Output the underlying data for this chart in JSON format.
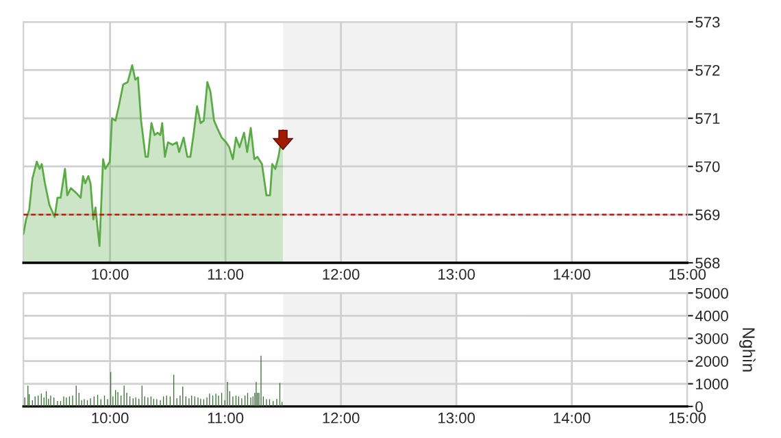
{
  "chart_data": [
    {
      "type": "area",
      "xlim": [
        9.25,
        15
      ],
      "xticks": [
        {
          "value": 10,
          "label": "10:00"
        },
        {
          "value": 11,
          "label": "11:00"
        },
        {
          "value": 12,
          "label": "12:00"
        },
        {
          "value": 13,
          "label": "13:00"
        },
        {
          "value": 14,
          "label": "14:00"
        },
        {
          "value": 15,
          "label": "15:00"
        }
      ],
      "ylim": [
        568,
        573
      ],
      "yticks": [
        568,
        569,
        570,
        571,
        572,
        573
      ],
      "grid": true,
      "ref_lines": [
        {
          "axis": "y",
          "value": 569,
          "color": "#cc0000",
          "line_style": "dashed"
        }
      ],
      "bands": [
        {
          "axis": "x",
          "from": 11.5,
          "to": 13,
          "color": "#f2f2f2"
        }
      ],
      "series": [
        {
          "color": "#5aaa46",
          "x": [
            9.25,
            9.273,
            9.3,
            9.328,
            9.366,
            9.39,
            9.409,
            9.436,
            9.475,
            9.521,
            9.545,
            9.572,
            9.61,
            9.63,
            9.661,
            9.707,
            9.746,
            9.766,
            9.785,
            9.812,
            9.831,
            9.855,
            9.874,
            9.893,
            9.909,
            9.94,
            9.959,
            9.998,
            10.017,
            10.048,
            10.076,
            10.114,
            10.153,
            10.192,
            10.219,
            10.242,
            10.269,
            10.308,
            10.328,
            10.359,
            10.386,
            10.413,
            10.436,
            10.452,
            10.475,
            10.502,
            10.541,
            10.579,
            10.599,
            10.638,
            10.669,
            10.696,
            10.723,
            10.754,
            10.785,
            10.812,
            10.843,
            10.87,
            10.901,
            10.928,
            10.967,
            11.006,
            11.033,
            11.064,
            11.091,
            11.122,
            11.161,
            11.188,
            11.219,
            11.25,
            11.277,
            11.316,
            11.355,
            11.386,
            11.405,
            11.432,
            11.459,
            11.498
          ],
          "values": [
            568.6,
            568.9,
            569.1,
            569.75,
            570.1,
            569.95,
            570.05,
            569.65,
            569.2,
            568.95,
            569.35,
            569.35,
            569.95,
            569.4,
            569.55,
            569.45,
            569.35,
            569.8,
            569.65,
            569.8,
            569.65,
            568.9,
            569.15,
            568.7,
            568.35,
            570.15,
            569.95,
            570.1,
            571.0,
            570.95,
            571.25,
            571.7,
            571.75,
            572.1,
            571.8,
            571.85,
            570.95,
            570.2,
            570.2,
            570.9,
            570.65,
            570.7,
            570.65,
            570.9,
            570.2,
            570.5,
            570.45,
            570.5,
            570.3,
            570.6,
            570.2,
            570.2,
            570.65,
            571.25,
            570.9,
            570.95,
            571.75,
            571.55,
            570.95,
            570.8,
            570.6,
            570.5,
            570.4,
            570.15,
            570.6,
            570.4,
            570.7,
            570.3,
            570.8,
            570.15,
            570.2,
            570.05,
            569.4,
            569.4,
            570.05,
            569.95,
            570.2,
            570.75
          ]
        }
      ]
    },
    {
      "type": "bar",
      "xlim": [
        9.25,
        15
      ],
      "xticks": [
        {
          "value": 10,
          "label": "10:00"
        },
        {
          "value": 11,
          "label": "11:00"
        },
        {
          "value": 12,
          "label": "12:00"
        },
        {
          "value": 13,
          "label": "13:00"
        },
        {
          "value": 14,
          "label": "14:00"
        },
        {
          "value": 15,
          "label": "15:00"
        }
      ],
      "ylim": [
        0,
        5000
      ],
      "yticks": [
        0,
        1000,
        2000,
        3000,
        4000,
        5000
      ],
      "ylabel": "Nghìn",
      "grid": true,
      "bands": [
        {
          "axis": "x",
          "from": 11.5,
          "to": 13,
          "color": "#f2f2f2"
        }
      ],
      "series": [
        {
          "color": "#3a6b35",
          "x": [
            9.262,
            9.289,
            9.3,
            9.328,
            9.351,
            9.378,
            9.405,
            9.428,
            9.448,
            9.467,
            9.486,
            9.514,
            9.545,
            9.572,
            9.599,
            9.622,
            9.649,
            9.676,
            9.707,
            9.731,
            9.754,
            9.777,
            9.804,
            9.831,
            9.862,
            9.893,
            9.921,
            9.952,
            9.979,
            10.006,
            10.025,
            10.048,
            10.068,
            10.095,
            10.122,
            10.145,
            10.172,
            10.2,
            10.223,
            10.25,
            10.277,
            10.3,
            10.328,
            10.355,
            10.378,
            10.405,
            10.436,
            10.463,
            10.49,
            10.521,
            10.552,
            10.579,
            10.607,
            10.63,
            10.657,
            10.684,
            10.707,
            10.734,
            10.762,
            10.785,
            10.812,
            10.839,
            10.862,
            10.89,
            10.917,
            10.94,
            10.967,
            10.994,
            11.017,
            11.037,
            11.064,
            11.091,
            11.114,
            11.141,
            11.169,
            11.192,
            11.219,
            11.238,
            11.254,
            11.266,
            11.278,
            11.29,
            11.308,
            11.328,
            11.355,
            11.382,
            11.413,
            11.444,
            11.471,
            11.49
          ],
          "values": [
            400,
            920,
            540,
            280,
            440,
            480,
            560,
            400,
            680,
            340,
            480,
            400,
            240,
            240,
            440,
            400,
            440,
            480,
            920,
            600,
            280,
            320,
            280,
            360,
            440,
            520,
            320,
            480,
            320,
            1520,
            440,
            720,
            640,
            480,
            920,
            600,
            440,
            360,
            400,
            340,
            920,
            440,
            400,
            440,
            340,
            320,
            280,
            440,
            480,
            440,
            1400,
            360,
            480,
            880,
            440,
            360,
            480,
            440,
            400,
            340,
            320,
            400,
            560,
            480,
            560,
            480,
            600,
            280,
            1080,
            680,
            440,
            480,
            440,
            360,
            480,
            600,
            400,
            440,
            600,
            1080,
            600,
            600,
            2240,
            440,
            320,
            320,
            240,
            340,
            1040,
            200
          ]
        }
      ]
    }
  ]
}
